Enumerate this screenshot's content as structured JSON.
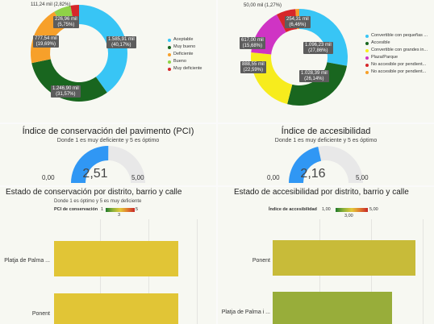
{
  "colors": {
    "cyan": "#38c5f5",
    "dark_green": "#19661f",
    "orange": "#f7a02a",
    "light_green": "#8fd247",
    "red": "#d6272a",
    "yellow": "#f7ec1d",
    "magenta": "#cf34c4",
    "gauge_blue": "#3097f4",
    "gauge_bg": "#e8e8e8",
    "bar_yellow": "#e1c536",
    "bar_olive1": "#c8bb39",
    "bar_olive2": "#98ad3a"
  },
  "pie_left": {
    "legend": [
      "Aceptable",
      "Muy bueno",
      "Deficiente",
      "Bueno",
      "Muy deficiente"
    ],
    "labels": {
      "aceptable": "1.585,91 mil\n(40,17%)",
      "muy_bueno": "1.246,90 mil\n(31,57%)",
      "deficiente": "777,54 mil\n(19,69%)",
      "bueno": "226,96 mil\n(5,75%)",
      "muy_deficiente": "111,24 mil (2,82%)"
    },
    "chart_data": {
      "type": "pie",
      "categories": [
        "Aceptable",
        "Muy bueno",
        "Deficiente",
        "Bueno",
        "Muy deficiente"
      ],
      "values": [
        1585.91,
        1246.9,
        777.54,
        226.96,
        111.24
      ],
      "percent": [
        40.17,
        31.57,
        19.69,
        5.75,
        2.82
      ]
    }
  },
  "pie_right": {
    "legend": [
      "Convertible con pequeñas ...",
      "Accesible",
      "Convertible con grandes in...",
      "Plaza/Parque",
      "No accesible por pendient...",
      "No accesible por pendient..."
    ],
    "labels": {
      "conv_peq": "1.096,23 mil\n(27,86%)",
      "accesible": "1.028,39 mil\n(26,14%)",
      "conv_grandes": "888,55 mil\n(22,59%)",
      "plaza": "617,00 mil\n(15,68%)",
      "no_acc1": "254,31 mil\n(6,46%)",
      "no_acc2": "50,00 mil (1,27%)"
    },
    "chart_data": {
      "type": "pie",
      "categories": [
        "Convertible con pequeñas ...",
        "Accesible",
        "Convertible con grandes in...",
        "Plaza/Parque",
        "No accesible por pendient...",
        "No accesible por pendient..."
      ],
      "values": [
        1096.23,
        1028.39,
        888.55,
        617.0,
        254.31,
        50.0
      ],
      "percent": [
        27.86,
        26.14,
        22.59,
        15.68,
        6.46,
        1.27
      ]
    }
  },
  "gauge_left": {
    "title": "Índice de conservación del pavimento (PCI)",
    "subtitle": "Donde 1 es muy deficiente y 5 es óptimo",
    "value": "2,51",
    "min": "0,00",
    "max": "5,00",
    "fraction": 0.502
  },
  "gauge_right": {
    "title": "Índice de accesibilidad",
    "subtitle": "Donde 1 es muy deficiente y 5 es óptimo",
    "value": "2,16",
    "min": "0,00",
    "max": "5,00",
    "fraction": 0.432
  },
  "bars_left": {
    "title": "Estado de conservación por distrito, barrio y calle",
    "subtitle": "Donde 1 es óptimo y 5 es muy deficiente",
    "legend_label": "PCI de conservación",
    "legend_min": "1",
    "legend_mid": "3",
    "legend_max": "5",
    "chart_data": {
      "type": "bar",
      "categories": [
        "Platja de Palma ...",
        "Ponent"
      ],
      "values": [
        2.9,
        2.9
      ]
    }
  },
  "bars_right": {
    "title": "Estado de accesibilidad por distrito, barrio y calle",
    "legend_label": "Índice de accesibilidad",
    "legend_min": "1,00",
    "legend_mid": "3,00",
    "legend_max": "5,00",
    "chart_data": {
      "type": "bar",
      "categories": [
        "Ponent",
        "Platja de Palma i ..."
      ],
      "values": [
        3.1,
        2.6
      ]
    }
  }
}
